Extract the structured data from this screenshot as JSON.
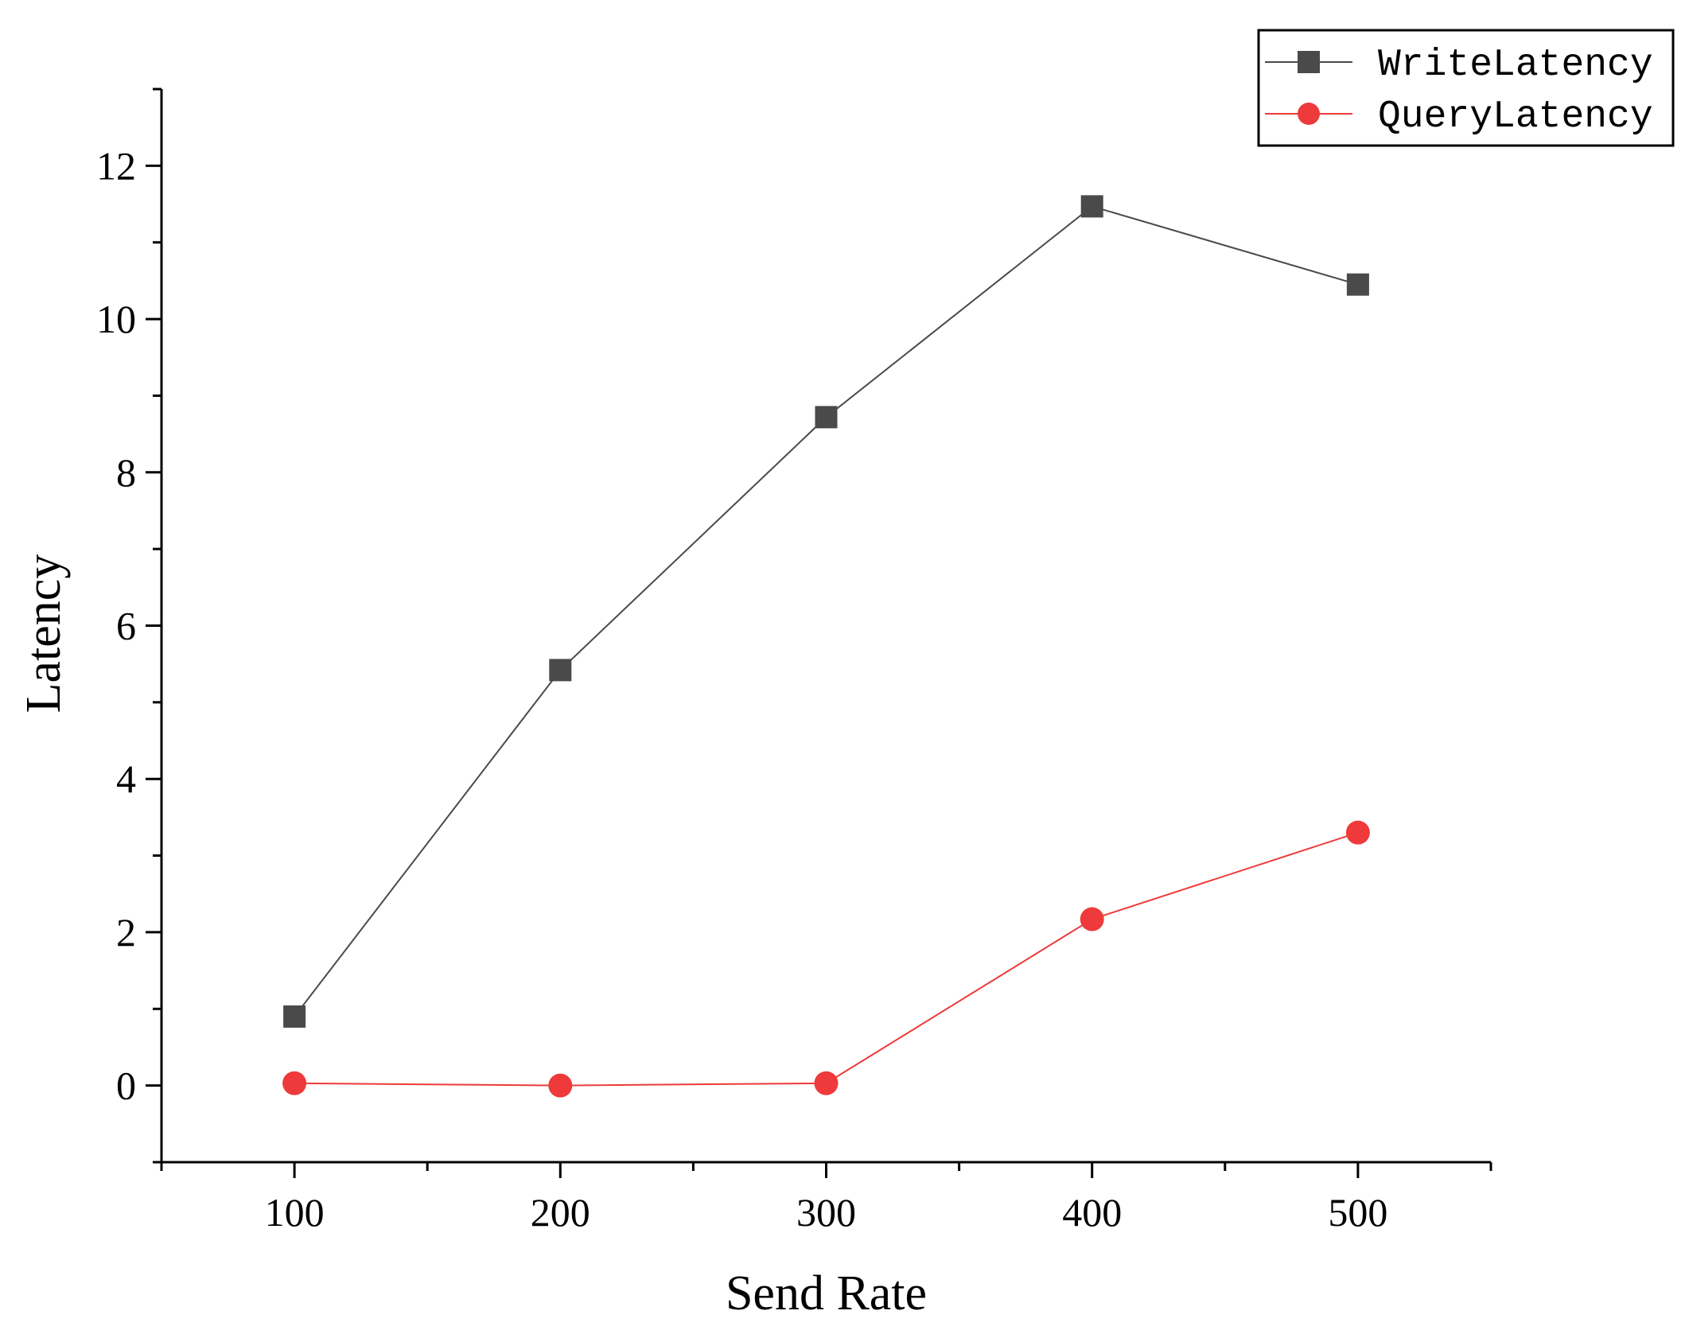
{
  "chart_data": {
    "type": "line",
    "title": "",
    "xlabel": "Send Rate",
    "ylabel": "Latency",
    "xlim": [
      50,
      550
    ],
    "ylim": [
      -1,
      13
    ],
    "x_ticks": [
      100,
      200,
      300,
      400,
      500
    ],
    "y_ticks": [
      0,
      2,
      4,
      6,
      8,
      10,
      12
    ],
    "grid": false,
    "legend_position": "top-right",
    "series": [
      {
        "name": "WriteLatency",
        "color": "#4a4a4a",
        "marker": "square",
        "x": [
          100,
          200,
          300,
          400,
          500
        ],
        "y": [
          0.9,
          5.42,
          8.72,
          11.47,
          10.45
        ]
      },
      {
        "name": "QueryLatency",
        "color": "#ee3a3a",
        "marker": "circle",
        "x": [
          100,
          200,
          300,
          400,
          500
        ],
        "y": [
          0.03,
          0.0,
          0.03,
          2.17,
          3.3
        ]
      }
    ]
  }
}
